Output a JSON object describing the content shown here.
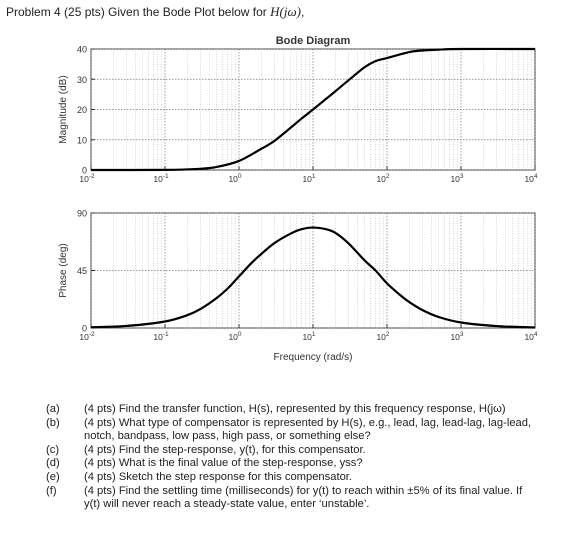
{
  "header": {
    "prefix": "Problem 4 (25 pts) Given the Bode Plot below for ",
    "func": "H(jω)",
    "suffix": ","
  },
  "chart_data": [
    {
      "type": "line",
      "title": "Bode Diagram",
      "xlabel": "",
      "ylabel": "Magnitude (dB)",
      "xscale": "log",
      "xlim": [
        0.01,
        10000
      ],
      "ylim": [
        0,
        40
      ],
      "yticks": [
        "0",
        "10",
        "20",
        "30",
        "40"
      ],
      "xticks": [
        {
          "b": "10",
          "e": "-2"
        },
        {
          "b": "10",
          "e": "-1"
        },
        {
          "b": "10",
          "e": "0"
        },
        {
          "b": "10",
          "e": "1"
        },
        {
          "b": "10",
          "e": "2"
        },
        {
          "b": "10",
          "e": "3"
        },
        {
          "b": "10",
          "e": "4"
        }
      ],
      "grid": true,
      "series": [
        {
          "x": [
            0.01,
            0.1,
            0.3,
            0.5,
            1,
            2,
            3,
            5,
            7,
            10,
            15,
            20,
            30,
            50,
            70,
            100,
            200,
            300,
            500,
            1000,
            10000
          ],
          "y": [
            0,
            0.04,
            0.4,
            1,
            3,
            7,
            9.6,
            14,
            17,
            20,
            23.5,
            26,
            29.6,
            34,
            36,
            37,
            39,
            39.5,
            39.8,
            40,
            40
          ]
        }
      ]
    },
    {
      "type": "line",
      "xlabel": "Frequency (rad/s)",
      "ylabel": "Phase (deg)",
      "xscale": "log",
      "xlim": [
        0.01,
        10000
      ],
      "ylim": [
        0,
        90
      ],
      "yticks": [
        "0",
        "45",
        "90"
      ],
      "xticks": [
        {
          "b": "10",
          "e": "-2"
        },
        {
          "b": "10",
          "e": "-1"
        },
        {
          "b": "10",
          "e": "0"
        },
        {
          "b": "10",
          "e": "1"
        },
        {
          "b": "10",
          "e": "2"
        },
        {
          "b": "10",
          "e": "3"
        },
        {
          "b": "10",
          "e": "4"
        }
      ],
      "grid": true,
      "series": [
        {
          "x": [
            0.01,
            0.03,
            0.1,
            0.2,
            0.3,
            0.5,
            0.7,
            1,
            1.5,
            2,
            3,
            5,
            7,
            10,
            15,
            20,
            30,
            50,
            70,
            100,
            150,
            200,
            300,
            500,
            1000,
            3000,
            10000
          ],
          "y": [
            0.6,
            1.6,
            5.1,
            10,
            14.8,
            23.5,
            30.8,
            40.4,
            51.3,
            57.9,
            66.4,
            73.9,
            77.3,
            78.6,
            77.3,
            74.5,
            66.4,
            52.8,
            45,
            34.9,
            25.8,
            20.3,
            14.1,
            8.6,
            4.3,
            1.5,
            0.4
          ]
        }
      ]
    }
  ],
  "questions": [
    {
      "label": "(a)",
      "lines": [
        "(4 pts) Find the transfer function, H(s), represented by this frequency response, H(jω)"
      ]
    },
    {
      "label": "(b)",
      "lines": [
        "(4 pts) What type of compensator is represented by H(s), e.g., lead, lag, lead-lag, lag-lead,",
        "notch, bandpass, low pass, high pass, or something else?"
      ]
    },
    {
      "label": "(c)",
      "lines": [
        "(4 pts) Find the step-response, y(t), for this compensator."
      ]
    },
    {
      "label": "(d)",
      "lines": [
        "(4 pts) What is the final value of the step-response, yss?"
      ]
    },
    {
      "label": "(e)",
      "lines": [
        "(4 pts) Sketch the step response for this compensator."
      ]
    },
    {
      "label": "(f)",
      "lines": [
        "(4 pts) Find the settling time (milliseconds) for y(t) to reach within ±5% of its final value. If",
        "y(t) will never reach a steady-state value, enter ‘unstable’."
      ]
    }
  ]
}
